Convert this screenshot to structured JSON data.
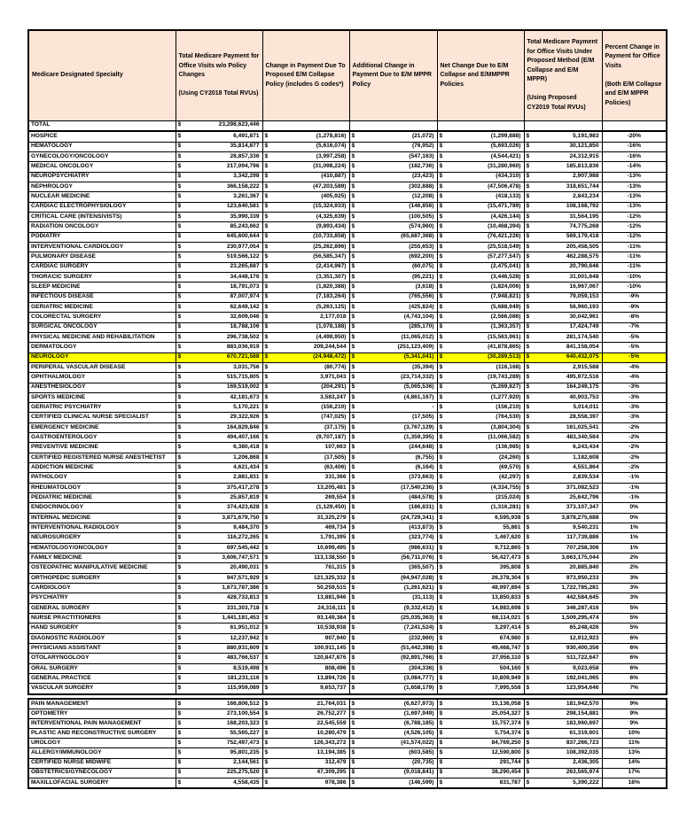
{
  "colors": {
    "header_bg": "#fce4d6",
    "highlight": "#ffff00",
    "border": "#000000",
    "text": "#000000"
  },
  "table": {
    "columns": [
      {
        "label": "Medicare Designated Specialty"
      },
      {
        "label": "Total Medicare Payment for Office Visits w/o Policy Changes\n\n(Using CY2018 Total RVUs)"
      },
      {
        "label": "Change in Payment Due To Proposed E/M Collapse Policy (includes G codes*)"
      },
      {
        "label": "Additional Change in Payment Due to E/M MPPR Policy"
      },
      {
        "label": "Net Change Due to E/M Collapse and E/MMPPR Policies"
      },
      {
        "label": "Total Medicare Payment for Office Visits Under Proposed Method (E/M Collapse and E/M MPPR)\n\n(Using Proposed CY2019 Total RVUs)"
      },
      {
        "label": "Percent Change in Payment for Office Visits\n\n(Both E/M Collapse and E/M MPPR Policies)"
      }
    ],
    "sections": [
      {
        "rows": [
          {
            "specialty": "TOTAL",
            "values": [
              "23,298,623,446",
              null,
              null,
              null,
              null
            ],
            "pct": null,
            "total": true
          },
          {
            "specialty": "HOSPICE",
            "values": [
              "6,491,871",
              "(1,278,816)",
              "(21,072)",
              "(1,299,888)",
              "5,191,983"
            ],
            "pct": "-20%"
          },
          {
            "specialty": "HEMATOLOGY",
            "values": [
              "35,814,877",
              "(5,616,074)",
              "(76,952)",
              "(5,693,026)",
              "30,121,850"
            ],
            "pct": "-16%"
          },
          {
            "specialty": "GYNECOLOGY/ONCOLOGY",
            "values": [
              "28,857,336",
              "(3,997,258)",
              "(547,163)",
              "(4,544,421)",
              "24,312,915"
            ],
            "pct": "-16%"
          },
          {
            "specialty": "MEDICAL ONCOLOGY",
            "values": [
              "217,094,796",
              "(31,098,224)",
              "(182,736)",
              "(31,280,960)",
              "185,813,836"
            ],
            "pct": "-14%"
          },
          {
            "specialty": "NEUROPSYCHIATRY",
            "values": [
              "3,342,298",
              "(410,887)",
              "(23,423)",
              "(434,310)",
              "2,907,988"
            ],
            "pct": "-13%"
          },
          {
            "specialty": "NEPHROLOGY",
            "values": [
              "366,158,222",
              "(47,203,589)",
              "(302,888)",
              "(47,506,478)",
              "318,651,744"
            ],
            "pct": "-13%"
          },
          {
            "specialty": "NUCLEAR MEDICINE",
            "values": [
              "3,261,367",
              "(405,925)",
              "(12,208)",
              "(418,133)",
              "2,843,234"
            ],
            "pct": "-13%"
          },
          {
            "specialty": "CARDIAC ELECTROPHYSIOLOGY",
            "values": [
              "123,640,581",
              "(15,324,933)",
              "(146,856)",
              "(15,471,789)",
              "108,168,792"
            ],
            "pct": "-13%"
          },
          {
            "specialty": "CRITICAL CARE (INTENSIVISTS)",
            "values": [
              "35,990,339",
              "(4,325,639)",
              "(100,505)",
              "(4,426,144)",
              "31,564,195"
            ],
            "pct": "-12%"
          },
          {
            "specialty": "RADIATION ONCOLOGY",
            "values": [
              "85,243,662",
              "(9,893,434)",
              "(574,960)",
              "(10,468,394)",
              "74,775,268"
            ],
            "pct": "-12%"
          },
          {
            "specialty": "PODIATRY",
            "values": [
              "645,600,644",
              "(10,733,858)",
              "(65,687,368)",
              "(76,421,226)",
              "569,179,418"
            ],
            "pct": "-12%"
          },
          {
            "specialty": "INTERVENTIONAL CARDIOLOGY",
            "values": [
              "230,977,054",
              "(25,262,896)",
              "(255,653)",
              "(25,518,549)",
              "205,458,505"
            ],
            "pct": "-11%"
          },
          {
            "specialty": "PULMONARY DISEASE",
            "values": [
              "519,566,122",
              "(56,585,347)",
              "(692,200)",
              "(57,277,547)",
              "462,288,575"
            ],
            "pct": "-11%"
          },
          {
            "specialty": "CARDIAC SURGERY",
            "values": [
              "23,265,687",
              "(2,414,967)",
              "(60,075)",
              "(2,475,041)",
              "20,790,646"
            ],
            "pct": "-11%"
          },
          {
            "specialty": "THORACIC SURGERY",
            "values": [
              "34,448,176",
              "(3,351,307)",
              "(95,221)",
              "(3,446,528)",
              "31,001,648"
            ],
            "pct": "-10%"
          },
          {
            "specialty": "SLEEP MEDICINE",
            "values": [
              "18,791,073",
              "(1,820,388)",
              "(3,618)",
              "(1,824,006)",
              "16,967,067"
            ],
            "pct": "-10%"
          },
          {
            "specialty": "INFECTIOUS DISEASE",
            "values": [
              "87,007,974",
              "(7,183,264)",
              "(765,556)",
              "(7,948,821)",
              "79,059,153"
            ],
            "pct": "-9%"
          },
          {
            "specialty": "GERIATRIC MEDICINE",
            "values": [
              "62,649,142",
              "(5,263,125)",
              "(425,824)",
              "(5,688,949)",
              "56,960,193"
            ],
            "pct": "-9%"
          },
          {
            "specialty": "COLORECTAL SURGERY",
            "values": [
              "32,609,046",
              "2,177,018",
              "(4,743,104)",
              "(2,566,086)",
              "30,042,961"
            ],
            "pct": "-8%"
          },
          {
            "specialty": "SURGICAL ONCOLOGY",
            "values": [
              "18,788,106",
              "(1,078,188)",
              "(285,170)",
              "(1,363,357)",
              "17,424,749"
            ],
            "pct": "-7%"
          },
          {
            "specialty": "PHYSICAL MEDICINE AND REHABILITATION",
            "values": [
              "296,738,502",
              "(4,498,950)",
              "(11,065,012)",
              "(15,563,961)",
              "281,174,540"
            ],
            "pct": "-5%"
          },
          {
            "specialty": "DERMATOLOGY",
            "values": [
              "883,036,919",
              "209,244,544",
              "(251,123,409)",
              "(41,878,865)",
              "841,158,054"
            ],
            "pct": "-5%"
          },
          {
            "specialty": "NEUROLOGY",
            "values": [
              "670,721,588",
              "(24,948,472)",
              "(5,341,041)",
              "(30,289,513)",
              "640,432,075"
            ],
            "pct": "-5%",
            "highlight": true
          },
          {
            "specialty": "PERIPERAL VASCULAR DISEASE",
            "values": [
              "3,031,756",
              "(80,774)",
              "(35,394)",
              "(116,168)",
              "2,915,588"
            ],
            "pct": "-4%"
          },
          {
            "specialty": "OPHTHALMOLOGY",
            "values": [
              "515,715,805",
              "3,971,043",
              "(23,714,332)",
              "(19,743,289)",
              "495,972,516"
            ],
            "pct": "-4%"
          },
          {
            "specialty": "ANESTHESIOLOGY",
            "values": [
              "169,519,002",
              "(204,291)",
              "(5,065,536)",
              "(5,269,827)",
              "164,249,175"
            ],
            "pct": "-3%"
          },
          {
            "specialty": "SPORTS MEDICINE",
            "values": [
              "42,181,673",
              "3,583,247",
              "(4,861,167)",
              "(1,277,920)",
              "40,903,753"
            ],
            "pct": "-3%"
          },
          {
            "specialty": "GERIATRIC PSYCHIATRY",
            "values": [
              "5,170,221",
              "(156,210)",
              "-",
              "(156,210)",
              "5,014,011"
            ],
            "pct": "-3%"
          },
          {
            "specialty": "CERTIFIED CLINICAL NURSE SPECIALIST",
            "values": [
              "29,322,926",
              "(747,025)",
              "(17,505)",
              "(764,530)",
              "28,558,397"
            ],
            "pct": "-3%"
          },
          {
            "specialty": "EMERGENCY MEDICINE",
            "values": [
              "164,829,846",
              "(37,175)",
              "(3,767,129)",
              "(3,804,304)",
              "161,025,541"
            ],
            "pct": "-2%"
          },
          {
            "specialty": "GASTROENTEROLOGY",
            "values": [
              "494,407,166",
              "(9,707,187)",
              "(1,359,395)",
              "(11,066,582)",
              "483,340,584"
            ],
            "pct": "-2%"
          },
          {
            "specialty": "PREVENTIVE MEDICINE",
            "values": [
              "6,380,418",
              "107,663",
              "(244,648)",
              "(136,985)",
              "6,243,434"
            ],
            "pct": "-2%"
          },
          {
            "specialty": "CERTIFIED REGISTERED NURSE ANESTHETIST",
            "values": [
              "1,206,868",
              "(17,505)",
              "(6,755)",
              "(24,260)",
              "1,182,608"
            ],
            "pct": "-2%"
          },
          {
            "specialty": "ADDICTION MEDICINE",
            "values": [
              "4,621,434",
              "(63,406)",
              "(6,164)",
              "(69,570)",
              "4,551,864"
            ],
            "pct": "-2%"
          },
          {
            "specialty": "PATHOLOGY",
            "values": [
              "2,881,831",
              "331,366",
              "(373,663)",
              "(42,297)",
              "2,839,534"
            ],
            "pct": "-1%"
          },
          {
            "specialty": "RHEUMATOLOGY",
            "values": [
              "375,417,278",
              "13,205,481",
              "(17,540,236)",
              "(4,334,755)",
              "371,082,523"
            ],
            "pct": "-1%"
          },
          {
            "specialty": "PEDIATRIC MEDICINE",
            "values": [
              "25,857,819",
              "269,554",
              "(484,578)",
              "(215,024)",
              "25,642,796"
            ],
            "pct": "-1%"
          },
          {
            "specialty": "ENDOCRINOLOGY",
            "values": [
              "374,423,628",
              "(1,129,450)",
              "(186,831)",
              "(1,316,281)",
              "373,107,347"
            ],
            "pct": "0%"
          },
          {
            "specialty": "INTERNAL MEDICINE",
            "values": [
              "3,871,679,750",
              "31,325,279",
              "(24,729,341)",
              "6,595,938",
              "3,878,275,688"
            ],
            "pct": "0%"
          },
          {
            "specialty": "INTERVENTIONAL RADIOLOGY",
            "values": [
              "9,484,370",
              "469,734",
              "(413,873)",
              "55,861",
              "9,540,231"
            ],
            "pct": "1%"
          },
          {
            "specialty": "NEUROSURGERY",
            "values": [
              "116,272,265",
              "1,791,395",
              "(323,774)",
              "1,467,620",
              "117,739,886"
            ],
            "pct": "1%"
          },
          {
            "specialty": "HEMATOLOGY/ONCOLOGY",
            "values": [
              "697,545,442",
              "10,699,495",
              "(986,631)",
              "9,712,865",
              "707,258,306"
            ],
            "pct": "1%"
          },
          {
            "specialty": "FAMILY MEDICINE",
            "values": [
              "3,606,747,571",
              "113,138,550",
              "(56,711,076)",
              "56,427,473",
              "3,663,175,044"
            ],
            "pct": "2%"
          },
          {
            "specialty": "OSTEOPATHIC MANIPULATIVE MEDICINE",
            "values": [
              "20,490,031",
              "761,315",
              "(365,507)",
              "395,808",
              "20,885,840"
            ],
            "pct": "2%"
          },
          {
            "specialty": "ORTHOPEDIC SURGERY",
            "values": [
              "947,571,929",
              "121,325,332",
              "(94,947,028)",
              "26,378,304",
              "973,950,233"
            ],
            "pct": "3%"
          },
          {
            "specialty": "CARDIOLOGY",
            "values": [
              "1,673,787,386",
              "50,259,515",
              "(1,261,621)",
              "48,997,894",
              "1,722,785,281"
            ],
            "pct": "3%"
          },
          {
            "specialty": "PSYCHIATRY",
            "values": [
              "428,733,813",
              "13,881,946",
              "(31,113)",
              "13,850,833",
              "442,584,645"
            ],
            "pct": "3%"
          },
          {
            "specialty": "GENERAL SURGERY",
            "values": [
              "331,303,718",
              "24,316,111",
              "(9,332,412)",
              "14,983,698",
              "346,287,416"
            ],
            "pct": "5%"
          },
          {
            "specialty": "NURSE PRACTITIONERS",
            "values": [
              "1,441,181,453",
              "93,149,384",
              "(25,035,363)",
              "68,114,021",
              "1,509,295,474"
            ],
            "pct": "5%"
          },
          {
            "specialty": "HAND SURGERY",
            "values": [
              "61,951,012",
              "10,538,938",
              "(7,241,524)",
              "3,297,414",
              "65,248,426"
            ],
            "pct": "5%"
          },
          {
            "specialty": "DIAGNOSTIC RADIOLOGY",
            "values": [
              "12,237,942",
              "907,940",
              "(232,960)",
              "674,980",
              "12,912,923"
            ],
            "pct": "6%"
          },
          {
            "specialty": "PHYSICIANS ASSISTANT",
            "values": [
              "880,931,609",
              "100,911,145",
              "(51,442,398)",
              "49,468,747",
              "930,400,356"
            ],
            "pct": "6%"
          },
          {
            "specialty": "OTOLARYNGOLOGY",
            "values": [
              "483,766,537",
              "120,847,876",
              "(92,891,766)",
              "27,956,110",
              "511,722,647"
            ],
            "pct": "6%"
          },
          {
            "specialty": "ORAL SURGERY",
            "values": [
              "8,519,498",
              "808,496",
              "(304,336)",
              "504,160",
              "9,023,658"
            ],
            "pct": "6%"
          },
          {
            "specialty": "GENERAL PRACTICE",
            "values": [
              "181,231,116",
              "13,894,726",
              "(3,084,777)",
              "10,809,949",
              "192,041,065"
            ],
            "pct": "6%"
          },
          {
            "specialty": "VASCULAR SURGERY",
            "values": [
              "115,959,089",
              "9,653,737",
              "(1,658,179)",
              "7,995,558",
              "123,954,646"
            ],
            "pct": "7%"
          }
        ]
      },
      {
        "rows": [
          {
            "specialty": "PAIN MANAGEMENT",
            "values": [
              "166,806,512",
              "21,764,031",
              "(6,627,973)",
              "15,136,058",
              "181,942,570"
            ],
            "pct": "9%"
          },
          {
            "specialty": "OPTOMETRY",
            "values": [
              "273,100,554",
              "26,752,277",
              "(1,697,949)",
              "25,054,327",
              "298,154,881"
            ],
            "pct": "9%"
          },
          {
            "specialty": "INTERVENTIONAL PAIN MANAGEMENT",
            "values": [
              "168,203,323",
              "22,545,559",
              "(6,788,185)",
              "15,757,374",
              "183,960,697"
            ],
            "pct": "9%"
          },
          {
            "specialty": "PLASTIC AND RECONSTRUCTIVE SURGERY",
            "values": [
              "55,565,227",
              "10,280,479",
              "(4,526,105)",
              "5,754,374",
              "61,319,601"
            ],
            "pct": "10%"
          },
          {
            "specialty": "UROLOGY",
            "values": [
              "752,497,473",
              "126,343,272",
              "(41,574,022)",
              "84,769,250",
              "837,266,723"
            ],
            "pct": "11%"
          },
          {
            "specialty": "ALLERGY/IMMUNOLOGY",
            "values": [
              "95,801,235",
              "13,194,385",
              "(603,585)",
              "12,590,800",
              "108,392,035"
            ],
            "pct": "13%"
          },
          {
            "specialty": "CERTIFIED NURSE MIDWIFE",
            "values": [
              "2,144,561",
              "312,479",
              "(20,735)",
              "291,744",
              "2,436,305"
            ],
            "pct": "14%"
          },
          {
            "specialty": "OBSTETRICS/GYNECOLOGY",
            "values": [
              "225,275,520",
              "47,309,295",
              "(9,018,841)",
              "38,290,454",
              "263,565,974"
            ],
            "pct": "17%"
          },
          {
            "specialty": "MAXILLOFACIAL SURGERY",
            "values": [
              "4,558,435",
              "978,386",
              "(146,599)",
              "831,787",
              "5,390,222"
            ],
            "pct": "18%"
          }
        ]
      }
    ]
  }
}
